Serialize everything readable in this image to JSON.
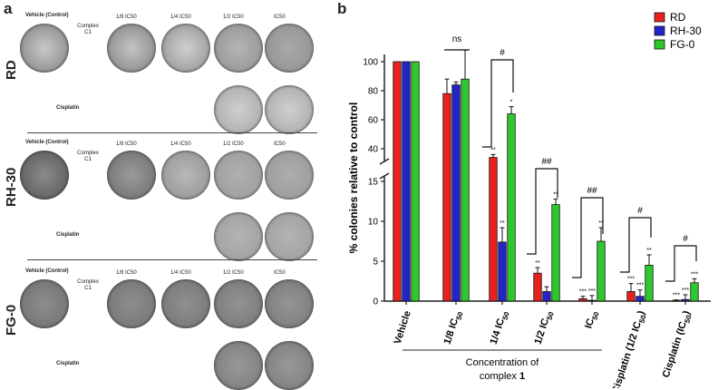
{
  "panel_a": {
    "letter": "a",
    "rows": [
      {
        "label": "RD",
        "vehicle": "Vehicle (Control)",
        "c18": "1/8 IC50",
        "c14": "1/4 IC50",
        "c12": "1/2 IC50",
        "cic": "IC50",
        "complex": "Complex",
        "complex_num": "C1",
        "cisplatin": "Cisplatin"
      },
      {
        "label": "RH-30",
        "vehicle": "Vehicle (Control)",
        "c18": "1/8 IC50",
        "c14": "1/4 IC50",
        "c12": "1/2 IC50",
        "cic": "IC50",
        "complex": "Complex",
        "complex_num": "C1",
        "cisplatin": "Cisplatin"
      },
      {
        "label": "FG-0",
        "vehicle": "Vehicle (Control)",
        "c18": "1/8 IC50",
        "c14": "1/4 IC50",
        "c12": "1/2 IC50",
        "cic": "IC50",
        "complex": "Complex",
        "complex_num": "C1",
        "cisplatin": "Cisplatin"
      }
    ]
  },
  "chart_data": {
    "type": "bar",
    "panel": "b",
    "title": "",
    "ylabel": "% colonies relative to control",
    "xlabel": "Concentration of complex 1",
    "xlabel_line1": "Concentration of",
    "xlabel_line2": "complex",
    "xlabel_num": "1",
    "ylim_lower": [
      0,
      15
    ],
    "ylim_upper": [
      35,
      105
    ],
    "y_ticks_lower": [
      "0",
      "5",
      "10",
      "15"
    ],
    "y_ticks_upper": [
      "40",
      "60",
      "80",
      "100"
    ],
    "categories": [
      "Vehicle",
      "1/8 IC50",
      "1/4 IC50",
      "1/2 IC50",
      "IC50",
      "Cisplatin (1/2 IC50)",
      "Cisplatin (IC50)"
    ],
    "category_labels": [
      {
        "pre": "",
        "main": "Vehicle",
        "sub": "",
        "post": ""
      },
      {
        "pre": "1/8 ",
        "main": "IC",
        "sub": "50",
        "post": ""
      },
      {
        "pre": "1/4 ",
        "main": "IC",
        "sub": "50",
        "post": ""
      },
      {
        "pre": "1/2 ",
        "main": "IC",
        "sub": "50",
        "post": ""
      },
      {
        "pre": "",
        "main": "IC",
        "sub": "50",
        "post": ""
      },
      {
        "pre": "Cisplatin (1/2 ",
        "main": "IC",
        "sub": "50",
        "post": ")"
      },
      {
        "pre": "Cisplatin (",
        "main": "IC",
        "sub": "50",
        "post": ")"
      }
    ],
    "series": [
      {
        "name": "RD",
        "color": "#e8201e",
        "values": [
          100,
          78,
          34,
          3.5,
          0.3,
          1.2,
          0.1
        ],
        "errors": [
          0,
          10,
          2,
          0.7,
          0.3,
          1.0,
          0.05
        ],
        "stars": [
          "",
          "",
          "**",
          "**",
          "***",
          "***",
          "***"
        ]
      },
      {
        "name": "RH-30",
        "color": "#2323c8",
        "values": [
          100,
          84,
          7.4,
          1.2,
          0.1,
          0.6,
          0.2
        ],
        "errors": [
          0,
          2,
          1.8,
          0.6,
          0.6,
          0.8,
          0.6
        ],
        "stars": [
          "",
          "",
          "**",
          "",
          "***",
          "***",
          "***"
        ]
      },
      {
        "name": "FG-0",
        "color": "#2ec82e",
        "values": [
          100,
          88,
          64,
          12.1,
          7.5,
          4.5,
          2.3
        ],
        "errors": [
          0,
          20,
          5,
          0.7,
          1.7,
          1.3,
          0.5
        ],
        "stars": [
          "",
          "",
          "*",
          "**",
          "**",
          "**",
          "***"
        ]
      }
    ],
    "comparisons": [
      "ns",
      "#",
      "##",
      "##",
      "#",
      "#"
    ],
    "legend_position": "top-right"
  }
}
